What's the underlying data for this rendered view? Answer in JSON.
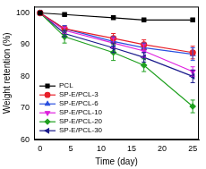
{
  "chart_data": {
    "type": "line",
    "x_label": "Time (day)",
    "y_label": "Weight retention (%)",
    "x": [
      0,
      4,
      12,
      17,
      25
    ],
    "xlim": [
      -1,
      26
    ],
    "xticks": [
      0,
      5,
      10,
      15,
      20,
      25
    ],
    "ylim": [
      60,
      102
    ],
    "yticks": [
      60,
      70,
      80,
      90,
      100
    ],
    "grid": false,
    "legend": "lower left",
    "series": [
      {
        "name": "PCL",
        "color": "#000000",
        "marker": "square",
        "values": [
          100,
          99.5,
          98.5,
          97.8,
          97.8
        ],
        "errors": [
          0,
          0.3,
          0.4,
          0.4,
          0.5
        ]
      },
      {
        "name": "SP-E/PCL-3",
        "color": "#e8202a",
        "marker": "circle",
        "values": [
          100,
          95,
          92,
          90,
          87.5
        ],
        "errors": [
          0,
          1,
          1.5,
          1.5,
          2
        ]
      },
      {
        "name": "SP-E/PCL-6",
        "color": "#2a50e0",
        "marker": "triangle-up",
        "values": [
          100,
          95,
          91,
          89,
          87
        ],
        "errors": [
          0,
          1,
          1.5,
          1.5,
          2
        ]
      },
      {
        "name": "SP-E/PCL-10",
        "color": "#e020e0",
        "marker": "triangle-down",
        "values": [
          100,
          94.5,
          90.5,
          88,
          81.5
        ],
        "errors": [
          0,
          1,
          1.5,
          2,
          1.5
        ]
      },
      {
        "name": "SP-E/PCL-20",
        "color": "#20a020",
        "marker": "diamond",
        "values": [
          100,
          92.5,
          87.5,
          83.5,
          70.5
        ],
        "errors": [
          0,
          2,
          2.5,
          2,
          2
        ]
      },
      {
        "name": "SP-E/PCL-30",
        "color": "#1a1a8c",
        "marker": "triangle-left",
        "values": [
          100,
          93.5,
          89,
          86,
          80
        ],
        "errors": [
          0,
          1,
          1.5,
          1.5,
          2
        ]
      }
    ]
  }
}
